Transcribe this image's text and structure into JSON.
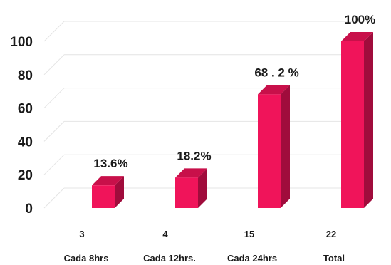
{
  "chart_data": {
    "type": "bar",
    "style": "3d-column",
    "categories": [
      "Cada 8hrs",
      "Cada 12hrs.",
      "Cada 24hrs",
      "Total"
    ],
    "counts": [
      "3",
      "4",
      "15",
      "22"
    ],
    "values": [
      13.6,
      18.2,
      68.2,
      100
    ],
    "data_labels": [
      "13.6%",
      "18.2%",
      "68 . 2 %",
      "100%"
    ],
    "ylim": [
      0,
      100
    ],
    "yticks": [
      0,
      20,
      40,
      60,
      80,
      100
    ],
    "grid": true,
    "legend": "none",
    "colors": {
      "bar_front": "#f0145a",
      "bar_top": "#c8104a",
      "bar_side": "#a00c3c",
      "grid": "#e4e4e4"
    }
  }
}
